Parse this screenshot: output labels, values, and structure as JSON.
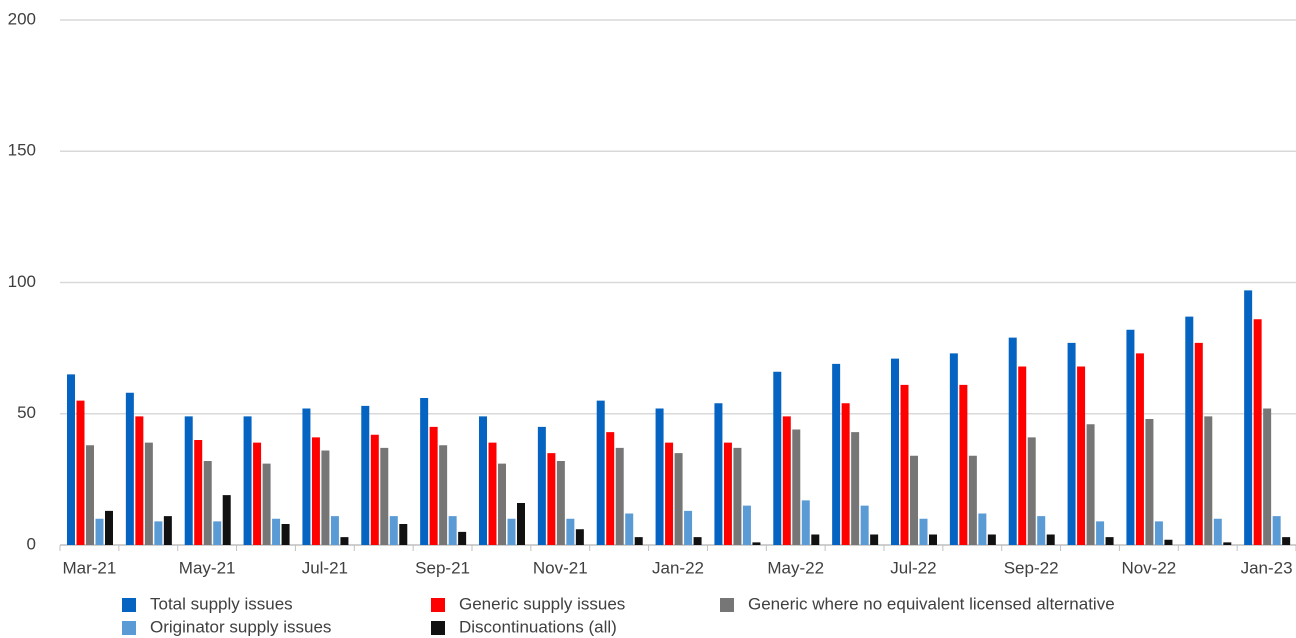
{
  "chart_data": {
    "type": "bar",
    "categories": [
      "Mar-21",
      null,
      "May-21",
      null,
      "Jul-21",
      null,
      "Sep-21",
      null,
      "Nov-21",
      null,
      "Jan-22",
      null,
      "May-22",
      null,
      "Jul-22",
      null,
      "Sep-22",
      null,
      "Nov-22",
      null,
      "Jan-23"
    ],
    "series": [
      {
        "name": "Total supply issues",
        "color": "#0563c1",
        "values": [
          65,
          58,
          49,
          49,
          52,
          53,
          56,
          49,
          45,
          55,
          52,
          54,
          66,
          69,
          71,
          73,
          79,
          77,
          82,
          87,
          97
        ]
      },
      {
        "name": "Generic supply issues",
        "color": "#ff0000",
        "values": [
          55,
          49,
          40,
          39,
          41,
          42,
          45,
          39,
          35,
          43,
          39,
          39,
          49,
          54,
          61,
          61,
          68,
          68,
          73,
          77,
          86
        ]
      },
      {
        "name": "Generic where no equivalent licensed alternative",
        "color": "#767676",
        "values": [
          38,
          39,
          32,
          31,
          36,
          37,
          38,
          31,
          32,
          37,
          35,
          37,
          44,
          43,
          34,
          34,
          41,
          46,
          48,
          49,
          52
        ]
      },
      {
        "name": "Originator supply issues",
        "color": "#5b9bd5",
        "values": [
          10,
          9,
          9,
          10,
          11,
          11,
          11,
          10,
          10,
          12,
          13,
          15,
          17,
          15,
          10,
          12,
          11,
          9,
          9,
          10,
          11
        ]
      },
      {
        "name": "Discontinuations (all)",
        "color": "#111111",
        "values": [
          13,
          11,
          19,
          8,
          3,
          8,
          5,
          16,
          6,
          3,
          3,
          1,
          4,
          4,
          4,
          4,
          4,
          3,
          2,
          1,
          3
        ]
      }
    ],
    "ylim": [
      0,
      200
    ],
    "yticks": [
      0,
      50,
      100,
      150,
      200
    ],
    "grid": true
  }
}
